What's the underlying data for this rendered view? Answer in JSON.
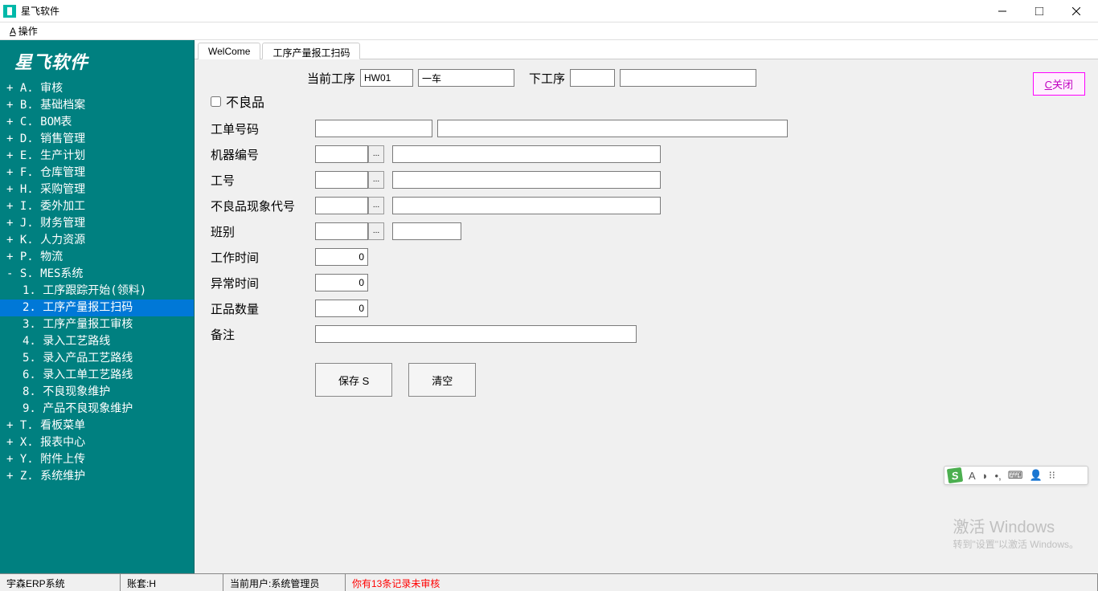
{
  "titlebar": {
    "title": "星飞软件"
  },
  "menubar": {
    "operate": "操作"
  },
  "sidebar": {
    "logo": "星飞软件",
    "items": [
      {
        "prefix": "+ ",
        "label": "A. 审核"
      },
      {
        "prefix": "+ ",
        "label": "B. 基础档案"
      },
      {
        "prefix": "+ ",
        "label": "C. BOM表"
      },
      {
        "prefix": "+ ",
        "label": "D. 销售管理"
      },
      {
        "prefix": "+ ",
        "label": "E. 生产计划"
      },
      {
        "prefix": "+ ",
        "label": "F. 仓库管理"
      },
      {
        "prefix": "+ ",
        "label": "H. 采购管理"
      },
      {
        "prefix": "+ ",
        "label": "I. 委外加工"
      },
      {
        "prefix": "+ ",
        "label": "J. 财务管理"
      },
      {
        "prefix": "+ ",
        "label": "K. 人力资源"
      },
      {
        "prefix": "+ ",
        "label": "P. 物流"
      },
      {
        "prefix": "- ",
        "label": "S. MES系统"
      }
    ],
    "subitems": [
      {
        "label": "1. 工序跟踪开始(领料)",
        "selected": false
      },
      {
        "label": "2. 工序产量报工扫码",
        "selected": true
      },
      {
        "label": "3. 工序产量报工审核",
        "selected": false
      },
      {
        "label": "4. 录入工艺路线",
        "selected": false
      },
      {
        "label": "5. 录入产品工艺路线",
        "selected": false
      },
      {
        "label": "6. 录入工单工艺路线",
        "selected": false
      },
      {
        "label": "8. 不良现象维护",
        "selected": false
      },
      {
        "label": "9. 产品不良现象维护",
        "selected": false
      }
    ],
    "tail": [
      {
        "prefix": "+ ",
        "label": "T. 看板菜单"
      },
      {
        "prefix": "+ ",
        "label": "X. 报表中心"
      },
      {
        "prefix": "+ ",
        "label": "Y. 附件上传"
      },
      {
        "prefix": "+ ",
        "label": "Z. 系统维护"
      }
    ]
  },
  "tabs": {
    "items": [
      {
        "label": "WelCome",
        "active": false
      },
      {
        "label": "工序产量报工扫码",
        "active": true
      }
    ]
  },
  "form": {
    "top": {
      "current_label": "当前工序",
      "current_code": "HW01",
      "current_name": "一车",
      "next_label": "下工序",
      "next_code": "",
      "next_name": ""
    },
    "defect_checkbox_label": "不良品",
    "work_order_label": "工单号码",
    "work_order_val": "",
    "work_order_name": "",
    "machine_label": "机器编号",
    "machine_code": "",
    "machine_name": "",
    "worker_label": "工号",
    "worker_code": "",
    "worker_name": "",
    "defect_code_label": "不良品现象代号",
    "defect_code": "",
    "defect_name": "",
    "shift_label": "班别",
    "shift_code": "",
    "shift_name": "",
    "work_time_label": "工作时间",
    "work_time_val": "0",
    "abnormal_time_label": "异常时间",
    "abnormal_time_val": "0",
    "good_qty_label": "正品数量",
    "good_qty_val": "0",
    "remark_label": "备注",
    "remark_val": ""
  },
  "buttons": {
    "save": "保存 S",
    "clear": "清空",
    "close": "C关闭"
  },
  "statusbar": {
    "system": "宇森ERP系统",
    "account": "账套:H",
    "user": "当前用户:系统管理员",
    "notice": "你有13条记录未审核"
  },
  "watermark": {
    "line1": "激活 Windows",
    "line2": "转到\"设置\"以激活 Windows。"
  },
  "ime": {
    "letter": "S",
    "a": "A"
  },
  "colors": {
    "sidebar_bg": "#008080",
    "selected_bg": "#0078d7",
    "yellow_input": "#ffffcc",
    "magenta": "#c000c0",
    "notice_red": "#ff0000"
  }
}
